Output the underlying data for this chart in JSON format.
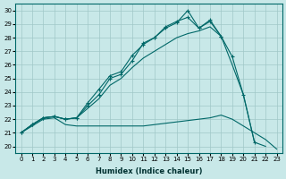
{
  "xlabel": "Humidex (Indice chaleur)",
  "background_color": "#c8e8e8",
  "grid_color": "#a0c8c8",
  "line_color": "#006868",
  "xlim": [
    -0.5,
    23.5
  ],
  "ylim": [
    19.5,
    30.5
  ],
  "xticks": [
    0,
    1,
    2,
    3,
    4,
    5,
    6,
    7,
    8,
    9,
    10,
    11,
    12,
    13,
    14,
    15,
    16,
    17,
    18,
    19,
    20,
    21,
    22,
    23
  ],
  "yticks": [
    20,
    21,
    22,
    23,
    24,
    25,
    26,
    27,
    28,
    29,
    30
  ],
  "lines": [
    {
      "x": [
        0,
        1,
        2,
        3,
        4,
        5,
        6,
        7,
        8,
        9,
        10,
        11,
        12,
        13,
        14,
        15,
        16,
        17,
        18,
        19,
        20,
        21
      ],
      "y": [
        21.0,
        21.6,
        22.1,
        22.2,
        22.0,
        22.1,
        23.2,
        24.2,
        25.2,
        25.5,
        26.7,
        27.5,
        28.0,
        28.7,
        29.1,
        30.0,
        28.7,
        29.2,
        28.1,
        26.6,
        23.8,
        20.3
      ],
      "marker": true
    },
    {
      "x": [
        0,
        1,
        2,
        3,
        4,
        5,
        6,
        7,
        8,
        9,
        10,
        11,
        12,
        13,
        14,
        15,
        16,
        17,
        18
      ],
      "y": [
        21.0,
        21.6,
        22.1,
        22.2,
        22.0,
        22.1,
        23.0,
        23.8,
        25.0,
        25.3,
        26.3,
        27.6,
        28.0,
        28.8,
        29.2,
        29.5,
        28.7,
        29.3,
        28.1
      ],
      "marker": true
    },
    {
      "x": [
        0,
        1,
        2,
        3,
        4,
        5,
        6,
        7,
        8,
        9,
        10,
        11,
        12,
        13,
        14,
        15,
        16,
        17,
        18,
        19,
        20,
        21,
        22,
        23
      ],
      "y": [
        21.0,
        21.6,
        22.1,
        22.2,
        22.0,
        22.1,
        22.8,
        23.5,
        24.5,
        25.0,
        25.8,
        26.5,
        27.0,
        27.5,
        28.0,
        28.3,
        28.5,
        28.8,
        28.1,
        26.0,
        23.8,
        20.3,
        20.0,
        null
      ],
      "marker": false
    },
    {
      "x": [
        0,
        1,
        2,
        3,
        4,
        5,
        6,
        7,
        8,
        9,
        10,
        11,
        12,
        13,
        14,
        15,
        16,
        17,
        18,
        19,
        20,
        21,
        22,
        23
      ],
      "y": [
        21.0,
        21.5,
        22.0,
        22.1,
        21.6,
        21.5,
        21.5,
        21.5,
        21.5,
        21.5,
        21.5,
        21.5,
        21.6,
        21.7,
        21.8,
        21.9,
        22.0,
        22.1,
        22.3,
        22.0,
        21.5,
        21.0,
        20.5,
        19.8
      ],
      "marker": false
    }
  ]
}
